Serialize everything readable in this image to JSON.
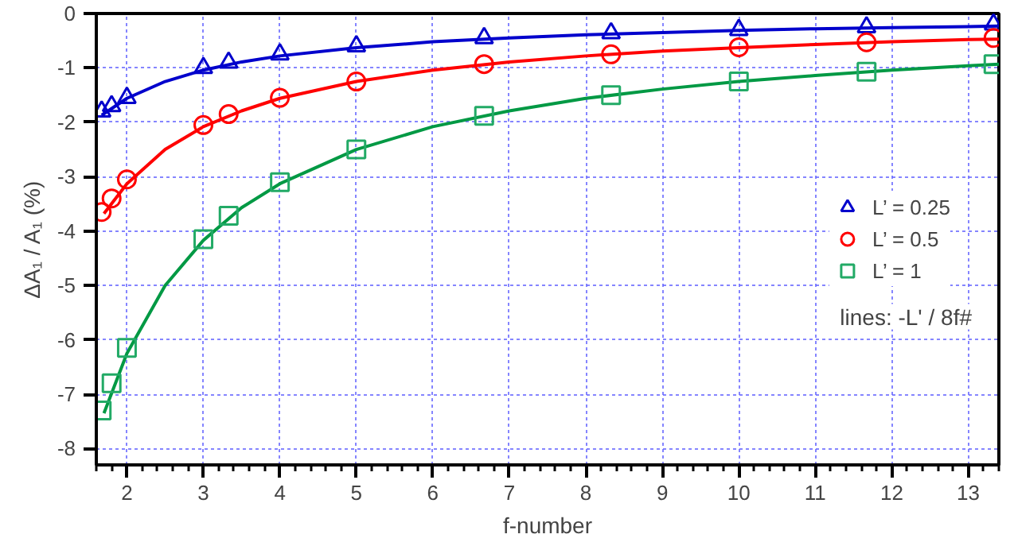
{
  "chart_data": {
    "type": "scatter",
    "xlabel": "f-number",
    "ylabel": "ΔA₁ / A₁ (%)",
    "xlim": [
      1.6,
      13.4
    ],
    "ylim": [
      -8.3,
      0
    ],
    "xticks": [
      2,
      3,
      4,
      5,
      6,
      7,
      8,
      9,
      10,
      11,
      12,
      13
    ],
    "yticks": [
      0,
      -1,
      -2,
      -3,
      -4,
      -5,
      -6,
      -7,
      -8
    ],
    "grid": true,
    "legend": "right",
    "annotations": [
      "lines: -L' / 8f#"
    ],
    "series": [
      {
        "type": "line",
        "color": "#0000cc",
        "marker": "none",
        "x": [
          1.67,
          2,
          2.5,
          3,
          3.5,
          4,
          5,
          6,
          7,
          8,
          9,
          10,
          11,
          12,
          13,
          13.4
        ],
        "values": [
          -1.87,
          -1.56,
          -1.25,
          -1.04,
          -0.89,
          -0.78,
          -0.63,
          -0.52,
          -0.45,
          -0.39,
          -0.35,
          -0.31,
          -0.28,
          -0.26,
          -0.24,
          -0.23
        ]
      },
      {
        "type": "line",
        "color": "#ff0000",
        "marker": "none",
        "x": [
          1.7,
          2,
          2.5,
          3,
          3.5,
          4,
          5,
          6,
          7,
          8,
          9,
          10,
          11,
          12,
          13,
          13.4
        ],
        "values": [
          -3.68,
          -3.13,
          -2.5,
          -2.08,
          -1.79,
          -1.56,
          -1.25,
          -1.04,
          -0.89,
          -0.78,
          -0.69,
          -0.63,
          -0.57,
          -0.52,
          -0.48,
          -0.47
        ]
      },
      {
        "type": "line",
        "color": "#009944",
        "marker": "none",
        "x": [
          1.7,
          2,
          2.5,
          3,
          3.5,
          4,
          5,
          6,
          7,
          8,
          9,
          10,
          11,
          12,
          13,
          13.4
        ],
        "values": [
          -7.35,
          -6.25,
          -5.0,
          -4.17,
          -3.57,
          -3.13,
          -2.5,
          -2.08,
          -1.79,
          -1.56,
          -1.39,
          -1.25,
          -1.14,
          -1.04,
          -0.96,
          -0.93
        ]
      },
      {
        "name": "L’ = 0.25",
        "color": "#0000cc",
        "marker": "triangle",
        "x": [
          1.67,
          1.8,
          2,
          3,
          3.33,
          4,
          5,
          6.67,
          8.33,
          10,
          11.67,
          13.33
        ],
        "values": [
          -1.8,
          -1.7,
          -1.55,
          -1.0,
          -0.9,
          -0.75,
          -0.6,
          -0.45,
          -0.36,
          -0.3,
          -0.25,
          -0.2
        ]
      },
      {
        "name": "L’ = 0.5",
        "color": "#ff0000",
        "marker": "circle",
        "x": [
          1.67,
          1.8,
          2,
          3,
          3.33,
          4,
          5,
          6.67,
          8.33,
          10,
          11.67,
          13.33
        ],
        "values": [
          -3.65,
          -3.4,
          -3.05,
          -2.05,
          -1.85,
          -1.55,
          -1.25,
          -0.93,
          -0.75,
          -0.62,
          -0.53,
          -0.45
        ]
      },
      {
        "name": "L’ = 1",
        "color": "#22aa66",
        "marker": "square",
        "x": [
          1.67,
          1.8,
          2,
          3,
          3.33,
          4,
          5,
          6.67,
          8.33,
          10,
          11.67,
          13.33
        ],
        "values": [
          -7.3,
          -6.8,
          -6.15,
          -4.15,
          -3.72,
          -3.1,
          -2.5,
          -1.88,
          -1.5,
          -1.25,
          -1.07,
          -0.93
        ]
      }
    ]
  }
}
